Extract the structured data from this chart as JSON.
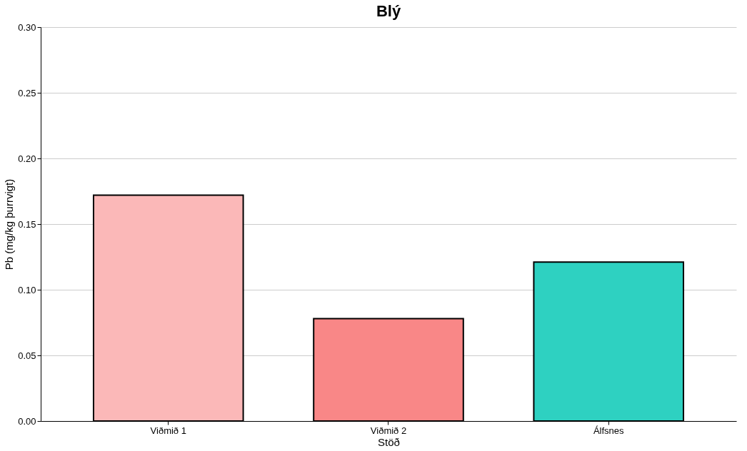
{
  "chart_data": {
    "type": "bar",
    "title": "Blý",
    "xlabel": "Stöð",
    "ylabel": "Pb (mg/kg þurrvigt)",
    "categories": [
      "Viðmið 1",
      "Viðmið 2",
      "Álfsnes"
    ],
    "values": [
      0.172,
      0.078,
      0.121
    ],
    "colors": [
      "#fbb8b8",
      "#f98787",
      "#2ed1c1"
    ],
    "ylim": [
      0,
      0.3
    ],
    "yticks": [
      {
        "value": 0,
        "label": "0.00"
      },
      {
        "value": 0.05,
        "label": "0.05"
      },
      {
        "value": 0.1,
        "label": "0.10"
      },
      {
        "value": 0.15,
        "label": "0.15"
      },
      {
        "value": 0.2,
        "label": "0.20"
      },
      {
        "value": 0.25,
        "label": "0.25"
      },
      {
        "value": 0.3,
        "label": "0.30"
      }
    ],
    "grid": "y"
  }
}
